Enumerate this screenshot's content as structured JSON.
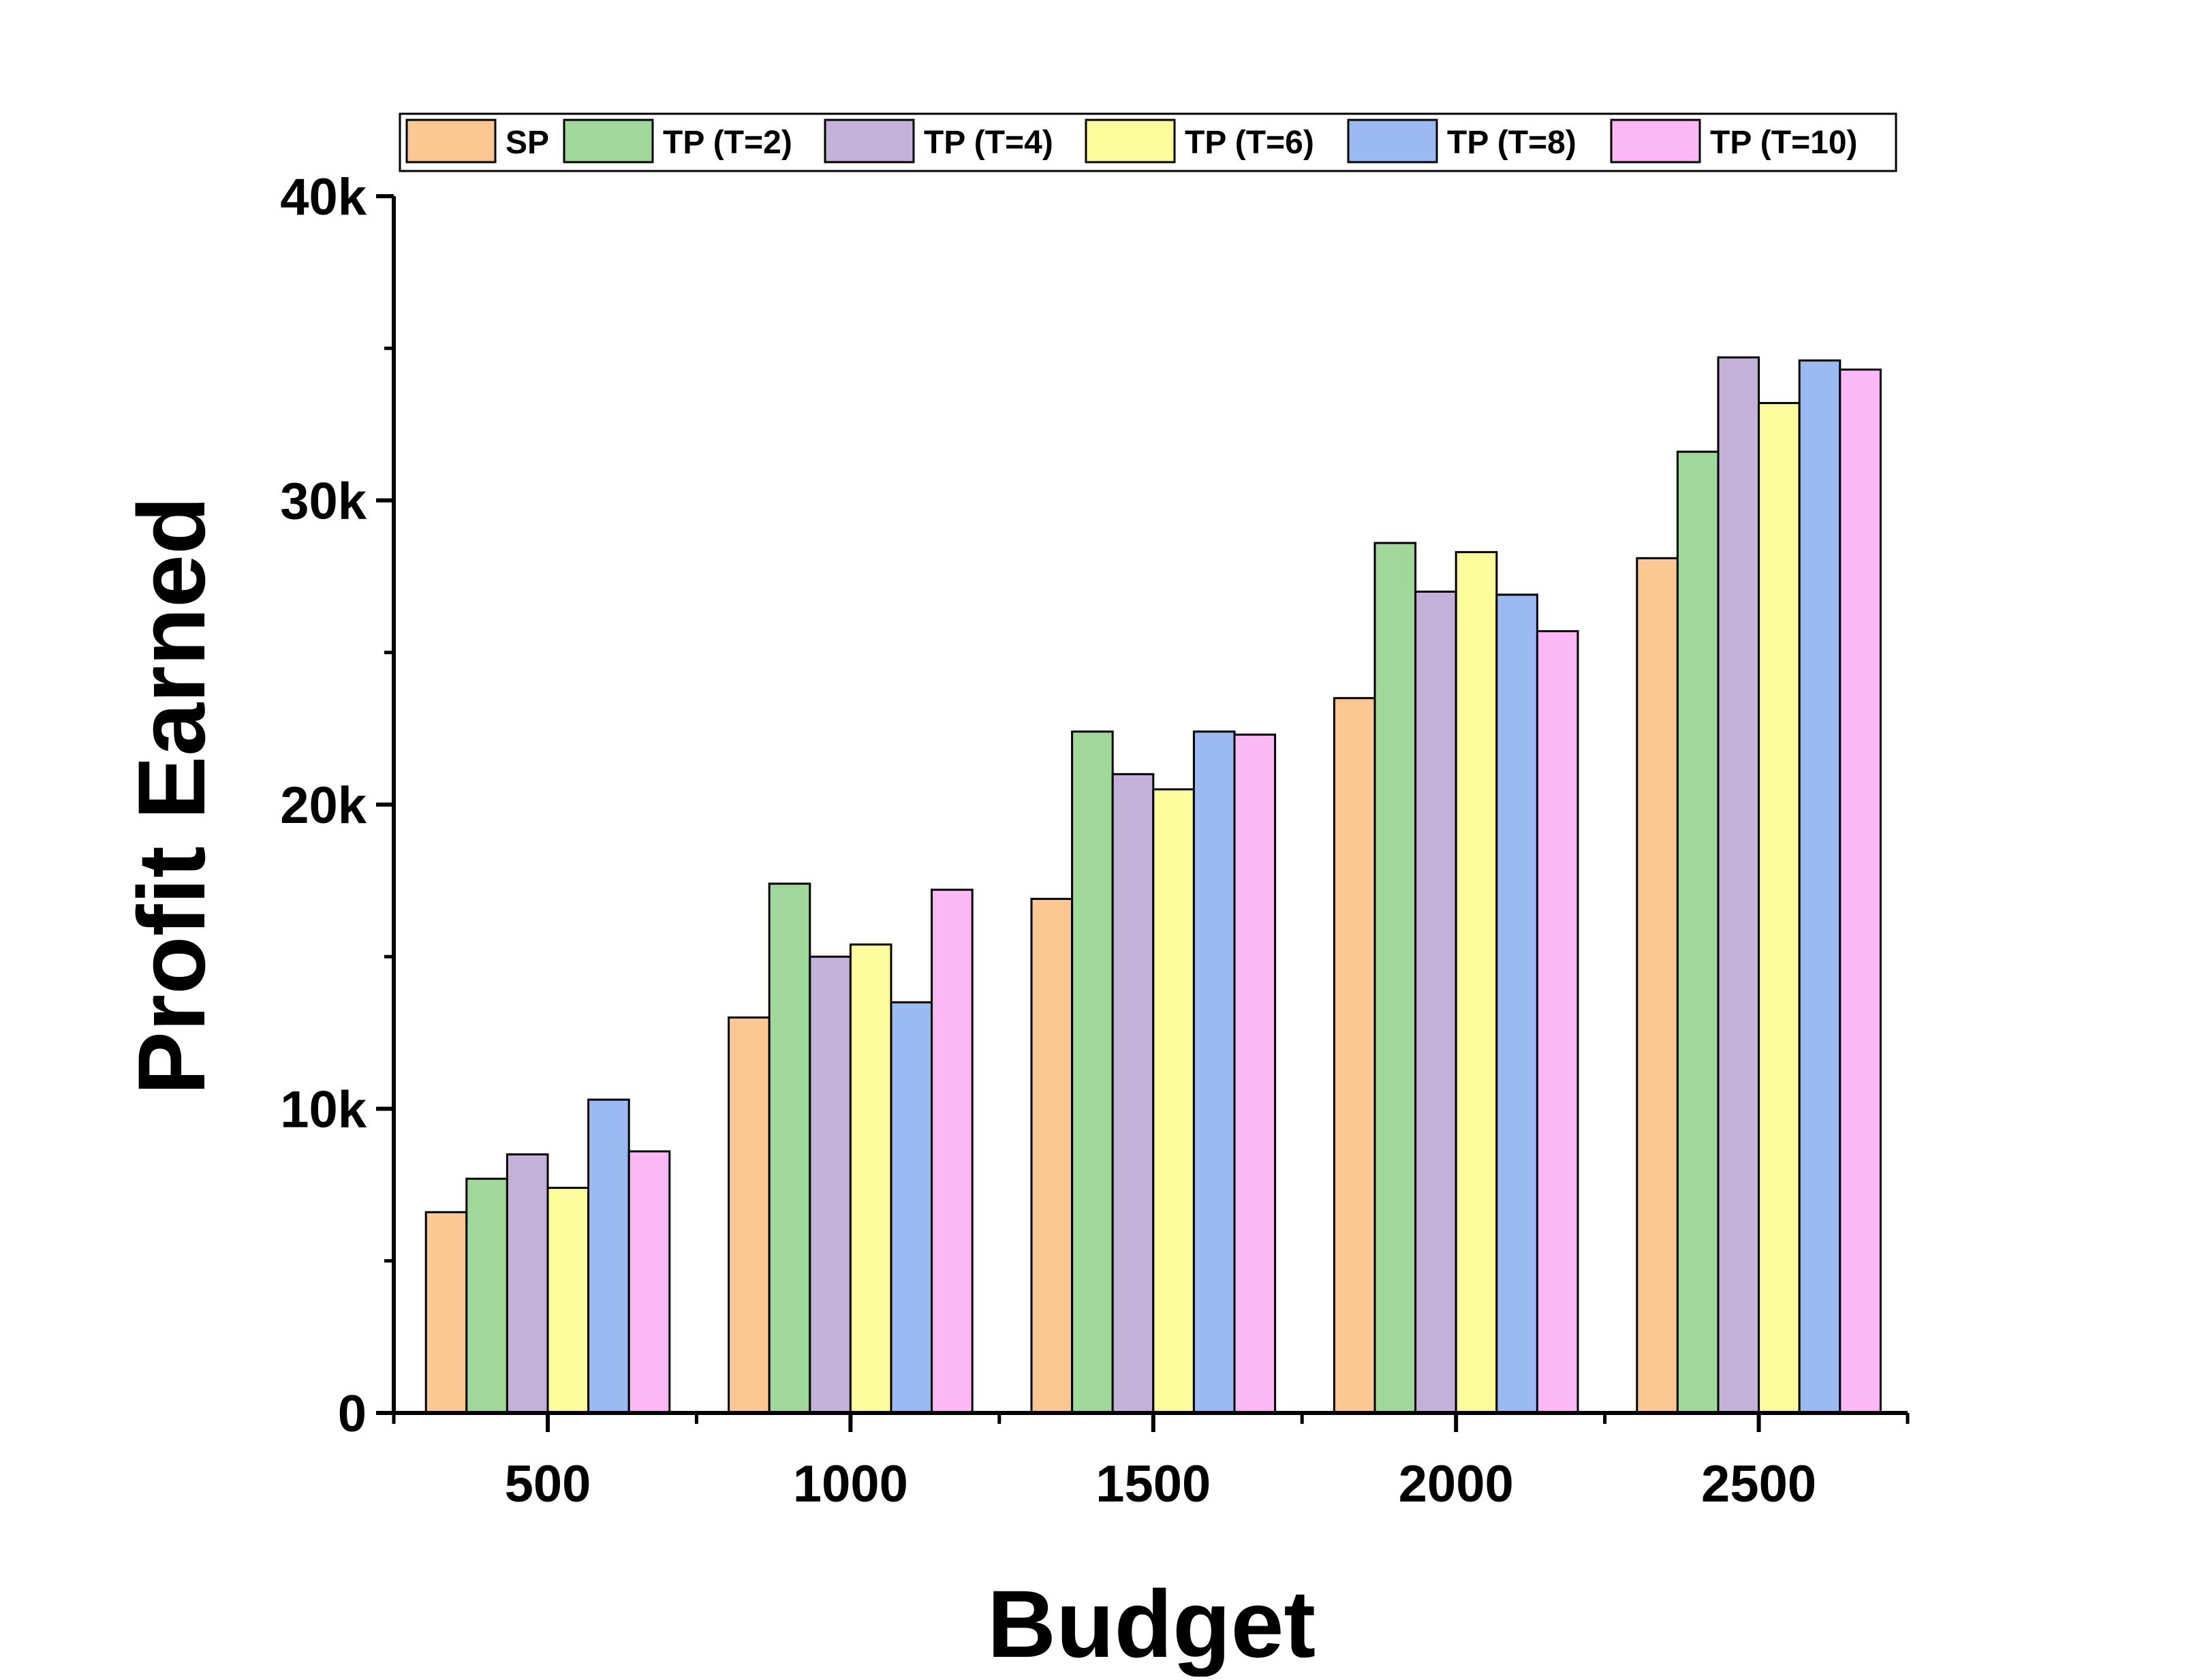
{
  "chart_data": {
    "type": "bar",
    "title": "",
    "xlabel": "Budget",
    "ylabel": "Profit Earned",
    "categories": [
      "500",
      "1000",
      "1500",
      "2000",
      "2500"
    ],
    "y_ticks": [
      {
        "value": 0,
        "label": "0"
      },
      {
        "value": 10000,
        "label": "10k"
      },
      {
        "value": 20000,
        "label": "20k"
      },
      {
        "value": 30000,
        "label": "30k"
      },
      {
        "value": 40000,
        "label": "40k"
      }
    ],
    "ylim": [
      0,
      40000
    ],
    "grid": false,
    "legend_position": "top",
    "series": [
      {
        "name": "SP",
        "color": "#FBC793",
        "values": [
          6600,
          13000,
          16900,
          23500,
          28100
        ]
      },
      {
        "name": "TP (T=2)",
        "color": "#9FD89A",
        "values": [
          7700,
          17400,
          22400,
          28600,
          31600
        ]
      },
      {
        "name": "TP (T=4)",
        "color": "#C3B1D8",
        "values": [
          8500,
          15000,
          21000,
          27000,
          34700
        ]
      },
      {
        "name": "TP (T=6)",
        "color": "#FEFD9E",
        "values": [
          7400,
          15400,
          20500,
          28300,
          33200
        ]
      },
      {
        "name": "TP (T=8)",
        "color": "#9BBAF1",
        "values": [
          10300,
          13500,
          22400,
          26900,
          34600
        ]
      },
      {
        "name": "TP (T=10)",
        "color": "#FCB8F4",
        "values": [
          8600,
          17200,
          22300,
          25700,
          34300
        ]
      }
    ]
  }
}
